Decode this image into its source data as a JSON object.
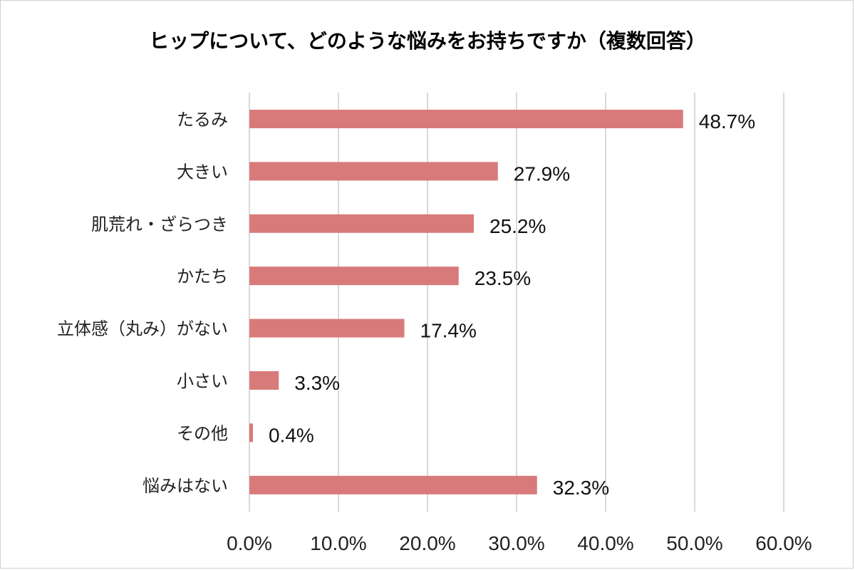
{
  "chart_data": {
    "type": "bar",
    "orientation": "horizontal",
    "title": "ヒップについて、どのような悩みをお持ちですか（複数回答）",
    "categories": [
      "たるみ",
      "大きい",
      "肌荒れ・ざらつき",
      "かたち",
      "立体感（丸み）がない",
      "小さい",
      "その他",
      "悩みはない"
    ],
    "values": [
      48.7,
      27.9,
      25.2,
      23.5,
      17.4,
      3.3,
      0.4,
      32.3
    ],
    "value_labels": [
      "48.7%",
      "27.9%",
      "25.2%",
      "23.5%",
      "17.4%",
      "3.3%",
      "0.4%",
      "32.3%"
    ],
    "xlim": [
      0,
      60
    ],
    "ticks": [
      0,
      10,
      20,
      30,
      40,
      50,
      60
    ],
    "tick_labels": [
      "0.0%",
      "10.0%",
      "20.0%",
      "30.0%",
      "40.0%",
      "50.0%",
      "60.0%"
    ],
    "grid": true,
    "bar_color": "#d97a7a"
  }
}
